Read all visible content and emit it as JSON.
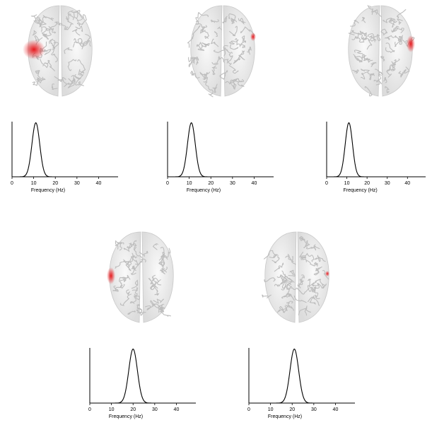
{
  "figure": {
    "panels": [
      {
        "id": "p1",
        "activation": "left-frontal",
        "chart_data": {
          "type": "line",
          "xlabel": "Frequency (Hz)",
          "ylabel": "",
          "xlim": [
            0,
            49
          ],
          "ylim": [
            0,
            1
          ],
          "xticks": [
            0,
            10,
            20,
            30,
            40
          ],
          "peak": {
            "center": 11,
            "sigma": 1.8
          },
          "series": [
            {
              "x": "0..49",
              "shape": "gaussian"
            }
          ]
        }
      },
      {
        "id": "p2",
        "activation": "right-edge-small",
        "chart_data": {
          "type": "line",
          "xlabel": "Frequency (Hz)",
          "ylabel": "",
          "xlim": [
            0,
            49
          ],
          "ylim": [
            0,
            1
          ],
          "xticks": [
            0,
            10,
            20,
            30,
            40
          ],
          "peak": {
            "center": 11,
            "sigma": 1.8
          },
          "series": [
            {
              "x": "0..49",
              "shape": "gaussian"
            }
          ]
        }
      },
      {
        "id": "p3",
        "activation": "right-edge",
        "chart_data": {
          "type": "line",
          "xlabel": "Frequency (Hz)",
          "ylabel": "",
          "xlim": [
            0,
            49
          ],
          "ylim": [
            0,
            1
          ],
          "xticks": [
            0,
            10,
            20,
            30,
            40
          ],
          "peak": {
            "center": 11,
            "sigma": 1.8
          },
          "series": [
            {
              "x": "0..49",
              "shape": "gaussian"
            }
          ]
        }
      },
      {
        "id": "p4",
        "activation": "left-edge",
        "chart_data": {
          "type": "line",
          "xlabel": "Frequency (Hz)",
          "ylabel": "",
          "xlim": [
            0,
            49
          ],
          "ylim": [
            0,
            1
          ],
          "xticks": [
            0,
            10,
            20,
            30,
            40
          ],
          "peak": {
            "center": 20,
            "sigma": 2.0
          },
          "series": [
            {
              "x": "0..49",
              "shape": "gaussian"
            }
          ]
        }
      },
      {
        "id": "p5",
        "activation": "right-edge-faint",
        "chart_data": {
          "type": "line",
          "xlabel": "Frequency (Hz)",
          "ylabel": "",
          "xlim": [
            0,
            49
          ],
          "ylim": [
            0,
            1
          ],
          "xticks": [
            0,
            10,
            20,
            30,
            40
          ],
          "peak": {
            "center": 21,
            "sigma": 2.0
          },
          "series": [
            {
              "x": "0..49",
              "shape": "gaussian"
            }
          ]
        }
      }
    ],
    "colors": {
      "brain_fill": "#f2f2f2",
      "brain_gyri": "#bdbdbd",
      "activation": "#e8181c",
      "line": "#000000"
    }
  }
}
